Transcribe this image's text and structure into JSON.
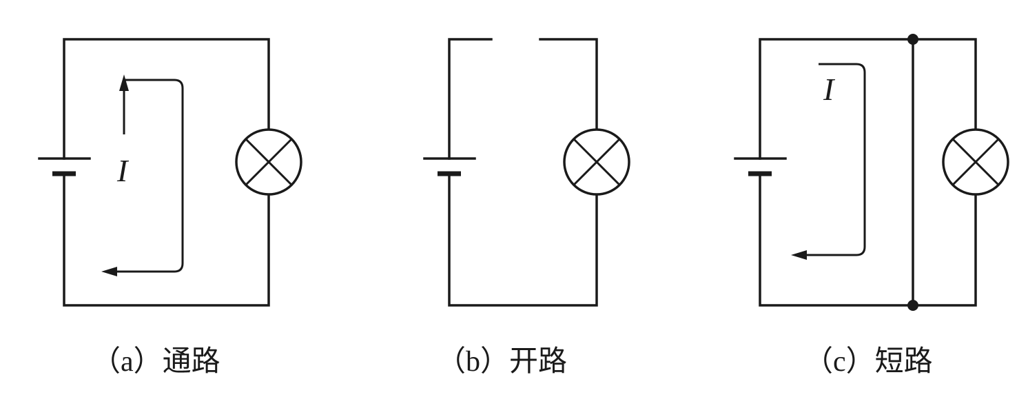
{
  "diagrams": [
    {
      "current_symbol": "I",
      "caption": "（a）通路"
    },
    {
      "caption": "（b）开路"
    },
    {
      "current_symbol": "I",
      "caption": "（c）短路"
    }
  ]
}
